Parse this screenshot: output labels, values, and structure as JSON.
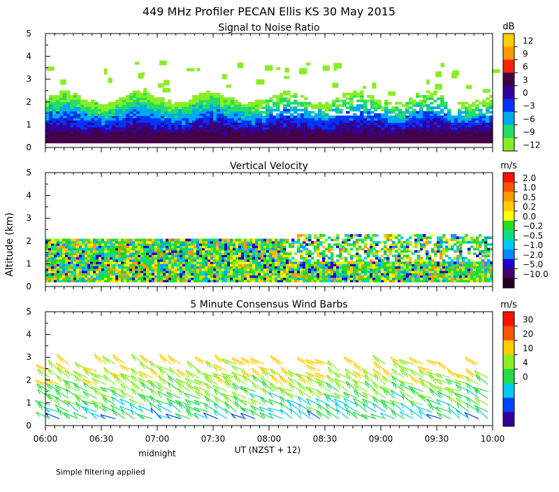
{
  "title": "449 MHz Profiler PECAN Ellis KS 30 May 2015",
  "footnote": "Simple filtering applied",
  "y_axis_label": "Altitude (km)",
  "x_axis": {
    "tick_labels": [
      "06:00",
      "06:30",
      "07:00",
      "07:30",
      "08:00",
      "08:30",
      "09:00",
      "09:30",
      "10:00"
    ],
    "label": "UT  (NZST + 12)",
    "annotation": "midnight"
  },
  "colors": {
    "lightgreen": "#88ee22",
    "green": "#22dd22",
    "greencyan": "#11dd88",
    "cyan": "#00ccee",
    "skyblue": "#0099ff",
    "blue": "#0033ff",
    "deepblue": "#2200cc",
    "indigo": "#330099",
    "darkpurple": "#440066",
    "nearblack": "#220022",
    "yellow": "#ffff00",
    "gold": "#ffcc00",
    "orange": "#ff9900",
    "deeporange": "#ff5500",
    "red": "#ff1100"
  },
  "chart_data": [
    {
      "type": "heatmap",
      "title": "Signal to Noise Ratio",
      "ylabel": "Altitude (km)",
      "xlabel": "UT  (NZST + 12)",
      "xlim": [
        6.0,
        10.0
      ],
      "ylim": [
        0,
        5
      ],
      "yticks": [
        "0",
        "1",
        "2",
        "3",
        "4",
        "5"
      ],
      "colorbar": {
        "unit": "dB",
        "labels": [
          "12",
          "9",
          "6",
          "3",
          "0",
          "−3",
          "−6",
          "−9",
          "−12"
        ],
        "colors": [
          "#ffcc00",
          "#ff9900",
          "#ff2200",
          "#440044",
          "#330099",
          "#0033ff",
          "#00aaee",
          "#22dd66",
          "#88ee22"
        ]
      },
      "approx_layers_km": [
        {
          "range": [
            0.2,
            0.7
          ],
          "value": 6
        },
        {
          "range": [
            0.7,
            1.1
          ],
          "value": 3
        },
        {
          "range": [
            1.1,
            1.5
          ],
          "value": 0
        },
        {
          "range": [
            1.5,
            1.9
          ],
          "value": -6
        },
        {
          "range": [
            1.9,
            2.3
          ],
          "value": -12
        }
      ]
    },
    {
      "type": "heatmap",
      "title": "Vertical Velocity",
      "ylabel": "Altitude (km)",
      "xlabel": "UT  (NZST + 12)",
      "xlim": [
        6.0,
        10.0
      ],
      "ylim": [
        0,
        5
      ],
      "yticks": [
        "0",
        "1",
        "2",
        "3",
        "4",
        "5"
      ],
      "colorbar": {
        "unit": "m/s",
        "labels": [
          "2.0",
          "1.0",
          "0.5",
          "0.2",
          "0.0",
          "−0.2",
          "−0.5",
          "−1.0",
          "−2.0",
          "−5.0",
          "−10.0"
        ],
        "colors": [
          "#ff1100",
          "#ff5500",
          "#ff9900",
          "#ffcc00",
          "#ffff00",
          "#22dd22",
          "#11dd88",
          "#00ccee",
          "#0088ff",
          "#2200cc",
          "#440066",
          "#220022"
        ]
      },
      "approx_coverage_km": [
        0.2,
        2.2
      ],
      "dominant_values": [
        0.0,
        -0.2,
        0.2
      ]
    },
    {
      "type": "scatter",
      "title": "5 Minute Consensus Wind Barbs",
      "ylabel": "Altitude (km)",
      "xlabel": "UT  (NZST + 12)",
      "xlim": [
        6.0,
        10.0
      ],
      "ylim": [
        0,
        5
      ],
      "yticks": [
        "0",
        "1",
        "2",
        "3",
        "4",
        "5"
      ],
      "colorbar": {
        "unit": "m/s",
        "labels": [
          "30",
          "20",
          "10",
          "4",
          "0"
        ],
        "colors": [
          "#ff1100",
          "#ff5500",
          "#ffcc00",
          "#88ee22",
          "#22dd44",
          "#00ccee",
          "#0044ff",
          "#330099"
        ]
      },
      "barb_levels_km": [
        0.3,
        0.6,
        0.9,
        1.2,
        1.5,
        1.8,
        2.1,
        2.4,
        2.7
      ],
      "interval_minutes": 5
    }
  ]
}
